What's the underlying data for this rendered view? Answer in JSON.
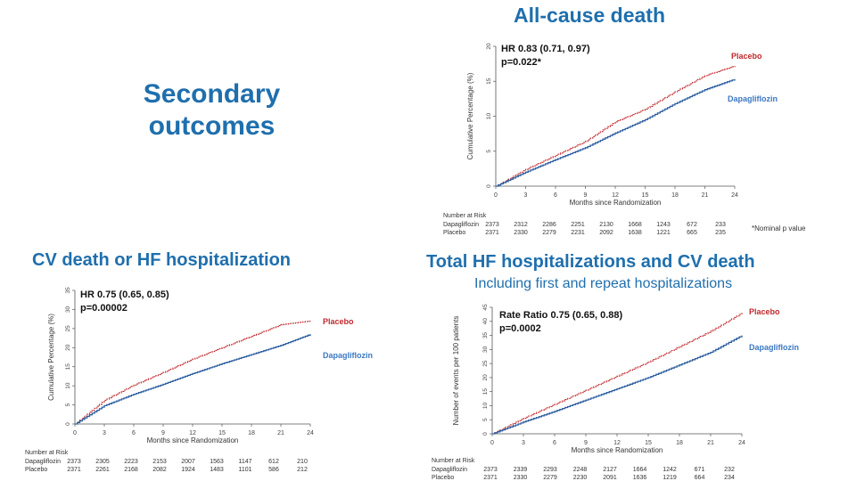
{
  "slide": {
    "title_line1": "Secondary",
    "title_line2": "outcomes",
    "nominal_note": "*Nominal p value"
  },
  "colors": {
    "heading": "#1f6fad",
    "placebo": "#c0282d",
    "dapagliflozin": "#2a5d9f",
    "legend_dapa": "#3b78c2"
  },
  "chart_data": [
    {
      "id": "all-cause",
      "type": "line",
      "title": "All-cause death",
      "subtitle": "",
      "hr_text": "HR 0.83 (0.71, 0.97)",
      "p_text": "p=0.022*",
      "xlabel": "Months since Randomization",
      "ylabel": "Cumulative Percentage (%)",
      "xlim": [
        0,
        24
      ],
      "ylim": [
        0,
        20
      ],
      "xticks": [
        0,
        3,
        6,
        9,
        12,
        15,
        18,
        21,
        24
      ],
      "yticks": [
        0,
        5,
        10,
        15,
        20
      ],
      "x": [
        0,
        3,
        6,
        9,
        12,
        15,
        18,
        21,
        24
      ],
      "series": [
        {
          "name": "Placebo",
          "values": [
            0,
            2.4,
            4.4,
            6.4,
            9.2,
            11.0,
            13.5,
            15.8,
            17.2
          ]
        },
        {
          "name": "Dapagliflozin",
          "values": [
            0,
            2.0,
            3.8,
            5.5,
            7.6,
            9.5,
            11.8,
            13.8,
            15.3
          ]
        }
      ],
      "risk_header": "Number at Risk",
      "risk": [
        {
          "label": "Dapagliflozin",
          "values": [
            "2373",
            "2312",
            "2286",
            "2251",
            "2130",
            "1668",
            "1243",
            "672",
            "233"
          ]
        },
        {
          "label": "Placebo",
          "values": [
            "2371",
            "2330",
            "2279",
            "2231",
            "2092",
            "1638",
            "1221",
            "665",
            "235"
          ]
        }
      ]
    },
    {
      "id": "cv-hf",
      "type": "line",
      "title": "CV death or HF hospitalization",
      "subtitle": "",
      "hr_text": "HR 0.75 (0.65, 0.85)",
      "p_text": "p=0.00002",
      "xlabel": "Months since Randomization",
      "ylabel": "Cumulative Percentage (%)",
      "xlim": [
        0,
        24
      ],
      "ylim": [
        0,
        35
      ],
      "xticks": [
        0,
        3,
        6,
        9,
        12,
        15,
        18,
        21,
        24
      ],
      "yticks": [
        0,
        5,
        10,
        15,
        20,
        25,
        30,
        35
      ],
      "x": [
        0,
        3,
        6,
        9,
        12,
        15,
        18,
        21,
        24
      ],
      "series": [
        {
          "name": "Placebo",
          "values": [
            0,
            6.2,
            10.2,
            13.5,
            17.0,
            20.0,
            23.0,
            26.0,
            27.0
          ]
        },
        {
          "name": "Dapagliflozin",
          "values": [
            0,
            4.8,
            7.8,
            10.4,
            13.2,
            15.8,
            18.2,
            20.6,
            23.5
          ]
        }
      ],
      "risk_header": "Number at Risk",
      "risk": [
        {
          "label": "Dapagliflozin",
          "values": [
            "2373",
            "2305",
            "2223",
            "2153",
            "2007",
            "1563",
            "1147",
            "612",
            "210"
          ]
        },
        {
          "label": "Placebo",
          "values": [
            "2371",
            "2261",
            "2168",
            "2082",
            "1924",
            "1483",
            "1101",
            "586",
            "212"
          ]
        }
      ]
    },
    {
      "id": "total-hf",
      "type": "line",
      "title": "Total HF hospitalizations and CV death",
      "subtitle": "Including first and repeat hospitalizations",
      "hr_text": "Rate Ratio 0.75 (0.65, 0.88)",
      "p_text": "p=0.0002",
      "xlabel": "Months since Randomization",
      "ylabel": "Number of events per 100 patients",
      "xlim": [
        0,
        24
      ],
      "ylim": [
        0,
        45
      ],
      "xticks": [
        0,
        3,
        6,
        9,
        12,
        15,
        18,
        21,
        24
      ],
      "yticks": [
        0,
        5,
        10,
        15,
        20,
        25,
        30,
        35,
        40,
        45
      ],
      "x": [
        0,
        3,
        6,
        9,
        12,
        15,
        18,
        21,
        24
      ],
      "series": [
        {
          "name": "Placebo",
          "values": [
            0,
            5.5,
            10.5,
            15.5,
            20.5,
            25.5,
            31.0,
            36.5,
            43.0
          ]
        },
        {
          "name": "Dapagliflozin",
          "values": [
            0,
            4.2,
            8.0,
            12.0,
            16.0,
            20.0,
            24.5,
            29.0,
            35.0
          ]
        }
      ],
      "risk_header": "Number at Risk",
      "risk": [
        {
          "label": "Dapagliflozin",
          "values": [
            "2373",
            "2339",
            "2293",
            "2248",
            "2127",
            "1664",
            "1242",
            "671",
            "232"
          ]
        },
        {
          "label": "Placebo",
          "values": [
            "2371",
            "2330",
            "2279",
            "2230",
            "2091",
            "1636",
            "1219",
            "664",
            "234"
          ]
        }
      ]
    }
  ]
}
